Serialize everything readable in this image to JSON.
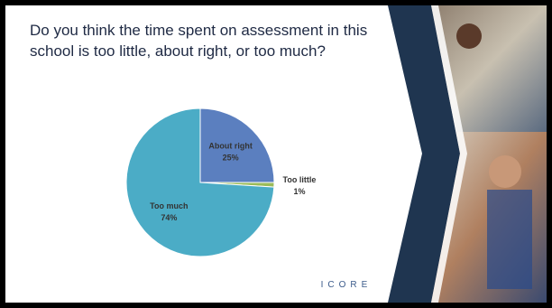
{
  "chart_data": {
    "type": "pie",
    "title": "Do you think the time spent on assessment in this school is too little, about right, or too much?",
    "categories": [
      "About right",
      "Too little",
      "Too much"
    ],
    "values": [
      25,
      1,
      74
    ],
    "value_labels": [
      "25%",
      "1%",
      "74%"
    ],
    "colors": [
      "#5b7fbf",
      "#9bbb59",
      "#4bacc6"
    ]
  },
  "logo": "ICORE"
}
